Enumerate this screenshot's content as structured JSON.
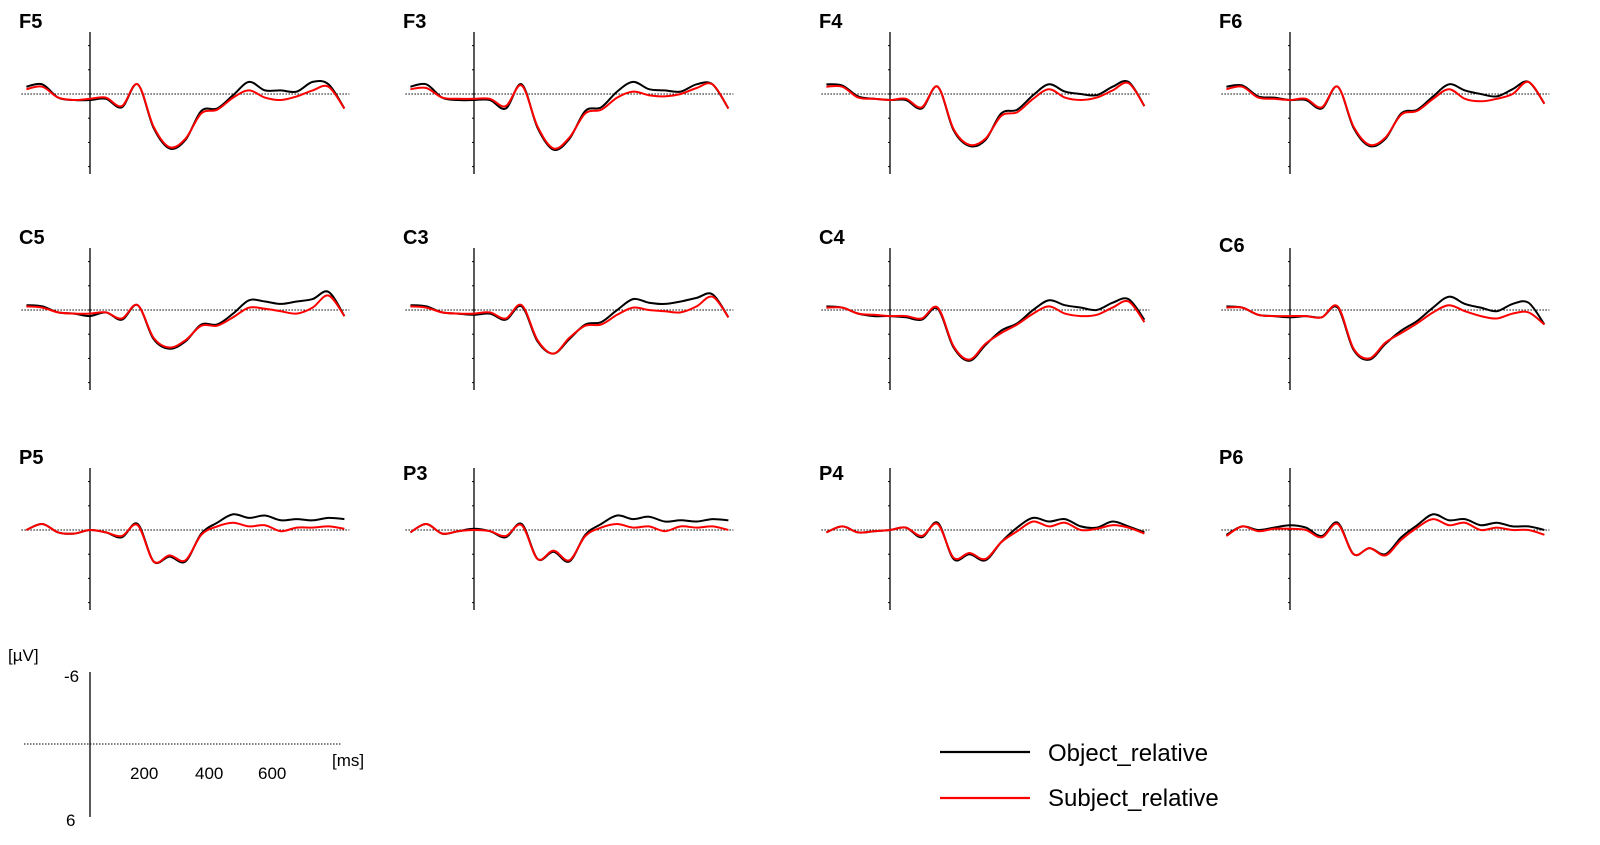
{
  "colors": {
    "object": "#000000",
    "subject": "#ff0000",
    "axis": "#000000"
  },
  "legend": {
    "items": [
      {
        "label": "Object_relative",
        "color": "#000000"
      },
      {
        "label": "Subject_relative",
        "color": "#ff0000"
      }
    ]
  },
  "scale": {
    "unit": "[µV]",
    "ymin_label": "-6",
    "ymax_label": "6",
    "x_ticks": [
      "200",
      "400",
      "600"
    ],
    "x_unit": "[ms]"
  },
  "chart_data": {
    "type": "line",
    "title": "",
    "xlabel": "[ms]",
    "ylabel": "[µV]",
    "xlim": [
      -200,
      800
    ],
    "ylim": [
      -6,
      6
    ],
    "y_inverted": true,
    "grid": false,
    "legend_position": "bottom-right",
    "x": [
      -200,
      -150,
      -100,
      -50,
      0,
      50,
      100,
      150,
      200,
      250,
      300,
      350,
      400,
      450,
      500,
      550,
      600,
      650,
      700,
      750,
      800
    ],
    "panels": [
      {
        "channel": "F5",
        "series": [
          {
            "name": "Object_relative",
            "values": [
              -0.6,
              -0.8,
              0.3,
              0.5,
              0.5,
              0.4,
              1.1,
              -0.8,
              2.8,
              4.5,
              3.8,
              1.4,
              1.2,
              0.1,
              -1.0,
              -0.3,
              -0.3,
              -0.2,
              -1.0,
              -0.8,
              1.2
            ]
          },
          {
            "name": "Subject_relative",
            "values": [
              -0.4,
              -0.6,
              0.3,
              0.5,
              0.4,
              0.3,
              1.0,
              -0.8,
              2.7,
              4.4,
              3.7,
              1.6,
              1.3,
              0.3,
              -0.3,
              0.3,
              0.5,
              0.2,
              -0.3,
              -0.6,
              1.2
            ]
          }
        ]
      },
      {
        "channel": "F3",
        "series": [
          {
            "name": "Object_relative",
            "values": [
              -0.6,
              -0.8,
              0.3,
              0.5,
              0.5,
              0.5,
              1.2,
              -0.8,
              2.8,
              4.6,
              3.7,
              1.4,
              1.1,
              -0.2,
              -1.0,
              -0.4,
              -0.3,
              -0.2,
              -0.8,
              -0.8,
              1.2
            ]
          },
          {
            "name": "Subject_relative",
            "values": [
              -0.4,
              -0.5,
              0.3,
              0.4,
              0.4,
              0.4,
              1.0,
              -0.7,
              2.7,
              4.5,
              3.6,
              1.6,
              1.3,
              0.3,
              -0.2,
              0.1,
              0.2,
              0.0,
              -0.5,
              -0.8,
              1.2
            ]
          }
        ]
      },
      {
        "channel": "F4",
        "series": [
          {
            "name": "Object_relative",
            "values": [
              -0.8,
              -0.7,
              0.2,
              0.4,
              0.5,
              0.5,
              1.2,
              -0.6,
              3.0,
              4.3,
              3.8,
              1.6,
              1.3,
              0.1,
              -0.8,
              -0.2,
              0.0,
              0.1,
              -0.6,
              -1.0,
              1.0
            ]
          },
          {
            "name": "Subject_relative",
            "values": [
              -0.6,
              -0.6,
              0.3,
              0.4,
              0.5,
              0.4,
              1.1,
              -0.6,
              2.9,
              4.2,
              3.7,
              1.8,
              1.5,
              0.4,
              -0.4,
              0.3,
              0.5,
              0.3,
              -0.3,
              -0.9,
              1.0
            ]
          }
        ]
      },
      {
        "channel": "F6",
        "series": [
          {
            "name": "Object_relative",
            "values": [
              -0.6,
              -0.7,
              0.2,
              0.3,
              0.5,
              0.5,
              1.2,
              -0.6,
              2.8,
              4.3,
              3.7,
              1.6,
              1.3,
              0.2,
              -0.8,
              -0.3,
              0.0,
              0.2,
              -0.4,
              -1.0,
              0.8
            ]
          },
          {
            "name": "Subject_relative",
            "values": [
              -0.4,
              -0.6,
              0.3,
              0.4,
              0.5,
              0.4,
              1.1,
              -0.6,
              2.7,
              4.2,
              3.6,
              1.7,
              1.4,
              0.4,
              -0.4,
              0.4,
              0.6,
              0.4,
              0.0,
              -1.0,
              0.8
            ]
          }
        ]
      },
      {
        "channel": "C5",
        "series": [
          {
            "name": "Object_relative",
            "values": [
              -0.4,
              -0.3,
              0.2,
              0.3,
              0.5,
              0.2,
              0.8,
              -0.4,
              2.4,
              3.2,
              2.6,
              1.2,
              1.2,
              0.3,
              -0.8,
              -0.7,
              -0.5,
              -0.7,
              -0.9,
              -1.5,
              0.5
            ]
          },
          {
            "name": "Subject_relative",
            "values": [
              -0.3,
              -0.2,
              0.2,
              0.3,
              0.3,
              0.2,
              0.7,
              -0.4,
              2.3,
              3.1,
              2.5,
              1.3,
              1.3,
              0.6,
              -0.2,
              -0.1,
              0.1,
              0.3,
              -0.2,
              -1.2,
              0.5
            ]
          }
        ]
      },
      {
        "channel": "C3",
        "series": [
          {
            "name": "Object_relative",
            "values": [
              -0.4,
              -0.3,
              0.2,
              0.3,
              0.4,
              0.3,
              0.8,
              -0.3,
              2.6,
              3.6,
              2.4,
              1.2,
              1.0,
              0.0,
              -0.9,
              -0.6,
              -0.5,
              -0.7,
              -1.0,
              -1.3,
              0.6
            ]
          },
          {
            "name": "Subject_relative",
            "values": [
              -0.3,
              -0.2,
              0.2,
              0.3,
              0.3,
              0.2,
              0.7,
              -0.4,
              2.5,
              3.6,
              2.3,
              1.3,
              1.2,
              0.4,
              -0.2,
              0.0,
              0.1,
              0.2,
              -0.3,
              -1.1,
              0.6
            ]
          }
        ]
      },
      {
        "channel": "C4",
        "series": [
          {
            "name": "Object_relative",
            "values": [
              -0.3,
              -0.2,
              0.3,
              0.5,
              0.5,
              0.6,
              0.8,
              -0.1,
              3.1,
              4.2,
              2.9,
              1.7,
              1.1,
              0.0,
              -0.8,
              -0.4,
              -0.2,
              0.0,
              -0.6,
              -0.9,
              0.8
            ]
          },
          {
            "name": "Subject_relative",
            "values": [
              -0.2,
              -0.2,
              0.3,
              0.4,
              0.5,
              0.5,
              0.7,
              -0.2,
              3.0,
              4.1,
              2.8,
              1.9,
              1.2,
              0.3,
              -0.3,
              0.3,
              0.5,
              0.4,
              -0.2,
              -0.7,
              1.0
            ]
          }
        ]
      },
      {
        "channel": "C6",
        "series": [
          {
            "name": "Object_relative",
            "values": [
              -0.3,
              -0.2,
              0.4,
              0.5,
              0.6,
              0.5,
              0.6,
              -0.2,
              3.3,
              4.1,
              2.8,
              1.7,
              0.9,
              -0.2,
              -1.1,
              -0.5,
              -0.2,
              0.1,
              -0.5,
              -0.6,
              1.2
            ]
          },
          {
            "name": "Subject_relative",
            "values": [
              -0.2,
              -0.2,
              0.4,
              0.5,
              0.5,
              0.5,
              0.6,
              -0.3,
              3.2,
              4.0,
              2.7,
              1.9,
              1.1,
              0.2,
              -0.4,
              0.1,
              0.5,
              0.7,
              0.3,
              0.2,
              1.2
            ]
          }
        ]
      },
      {
        "channel": "P5",
        "series": [
          {
            "name": "Object_relative",
            "values": [
              0.0,
              -0.5,
              0.2,
              0.3,
              0.0,
              0.2,
              0.6,
              -0.5,
              2.6,
              2.2,
              2.6,
              0.3,
              -0.6,
              -1.3,
              -1.0,
              -1.2,
              -0.8,
              -0.9,
              -0.8,
              -1.0,
              -0.9
            ]
          },
          {
            "name": "Subject_relative",
            "values": [
              0.0,
              -0.5,
              0.2,
              0.3,
              0.0,
              0.2,
              0.5,
              -0.4,
              2.6,
              2.1,
              2.5,
              0.4,
              -0.3,
              -0.6,
              -0.3,
              -0.4,
              0.1,
              -0.2,
              -0.2,
              -0.3,
              -0.1
            ]
          }
        ]
      },
      {
        "channel": "P3",
        "series": [
          {
            "name": "Object_relative",
            "values": [
              0.2,
              -0.5,
              0.3,
              0.1,
              -0.1,
              0.1,
              0.6,
              -0.5,
              2.4,
              1.8,
              2.6,
              0.4,
              -0.5,
              -1.2,
              -0.9,
              -1.1,
              -0.7,
              -0.8,
              -0.7,
              -0.9,
              -0.8
            ]
          },
          {
            "name": "Subject_relative",
            "values": [
              0.2,
              -0.5,
              0.3,
              0.1,
              0.0,
              0.1,
              0.5,
              -0.4,
              2.4,
              1.7,
              2.5,
              0.5,
              -0.2,
              -0.5,
              -0.2,
              -0.3,
              0.1,
              -0.3,
              -0.2,
              -0.3,
              0.0
            ]
          }
        ]
      },
      {
        "channel": "P4",
        "series": [
          {
            "name": "Object_relative",
            "values": [
              0.2,
              -0.3,
              0.2,
              0.1,
              0.0,
              -0.2,
              0.6,
              -0.6,
              2.4,
              2.0,
              2.5,
              1.0,
              -0.2,
              -1.0,
              -0.7,
              -0.9,
              -0.3,
              -0.2,
              -0.7,
              -0.3,
              0.2
            ]
          },
          {
            "name": "Subject_relative",
            "values": [
              0.2,
              -0.3,
              0.2,
              0.1,
              0.0,
              -0.2,
              0.5,
              -0.5,
              2.3,
              1.9,
              2.4,
              1.0,
              0.1,
              -0.7,
              -0.3,
              -0.6,
              0.0,
              -0.1,
              -0.4,
              -0.2,
              0.3
            ]
          }
        ]
      },
      {
        "channel": "P6",
        "series": [
          {
            "name": "Object_relative",
            "values": [
              0.4,
              -0.3,
              0.0,
              -0.2,
              -0.4,
              -0.2,
              0.5,
              -0.6,
              2.0,
              1.5,
              2.0,
              0.6,
              -0.4,
              -1.3,
              -0.8,
              -0.9,
              -0.4,
              -0.6,
              -0.3,
              -0.3,
              0.0
            ]
          },
          {
            "name": "Subject_relative",
            "values": [
              0.5,
              -0.3,
              0.1,
              -0.1,
              -0.1,
              0.0,
              0.6,
              -0.5,
              2.0,
              1.5,
              2.1,
              0.8,
              -0.2,
              -0.9,
              -0.4,
              -0.6,
              0.0,
              -0.2,
              0.0,
              0.0,
              0.4
            ]
          }
        ]
      }
    ]
  }
}
